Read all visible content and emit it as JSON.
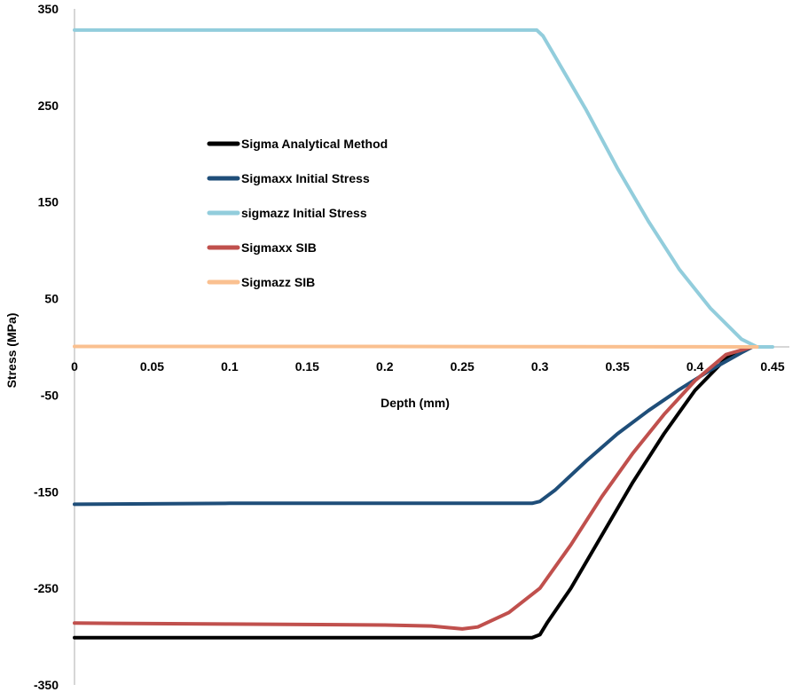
{
  "chart_data": {
    "type": "line",
    "title": "",
    "xlabel": "Depth (mm)",
    "ylabel": "Stress (MPa)",
    "xlim": [
      0,
      0.45
    ],
    "ylim": [
      -350,
      350
    ],
    "xticks": [
      0,
      0.05,
      0.1,
      0.15,
      0.2,
      0.25,
      0.3,
      0.35,
      0.4,
      0.45
    ],
    "xtick_labels": [
      "0",
      "0.05",
      "0.1",
      "0.15",
      "0.2",
      "0.25",
      "0.3",
      "0.35",
      "0.4",
      "0.45"
    ],
    "yticks": [
      350,
      250,
      150,
      50,
      -50,
      -150,
      -250,
      -350
    ],
    "ytick_labels": [
      "350",
      "250",
      "150",
      "50",
      "-50",
      "-150",
      "-250",
      "-350"
    ],
    "grid": false,
    "legend_position": "center-left",
    "series": [
      {
        "name": "Sigma Analytical Method",
        "color": "#000000",
        "x": [
          0,
          0.1,
          0.2,
          0.29,
          0.295,
          0.3,
          0.305,
          0.32,
          0.34,
          0.36,
          0.38,
          0.4,
          0.42,
          0.435
        ],
        "y": [
          -301,
          -301,
          -301,
          -301,
          -301,
          -298,
          -285,
          -250,
          -195,
          -140,
          -90,
          -45,
          -12,
          0
        ]
      },
      {
        "name": "Sigmaxx Initial Stress",
        "color": "#1f4e79",
        "x": [
          0,
          0.1,
          0.2,
          0.29,
          0.295,
          0.3,
          0.31,
          0.33,
          0.35,
          0.37,
          0.39,
          0.41,
          0.43,
          0.437
        ],
        "y": [
          -163,
          -162,
          -162,
          -162,
          -162,
          -160,
          -148,
          -118,
          -90,
          -66,
          -44,
          -24,
          -6,
          0
        ]
      },
      {
        "name": "sigmazz Initial Stress",
        "color": "#92cddc",
        "x": [
          0,
          0.1,
          0.2,
          0.29,
          0.298,
          0.302,
          0.31,
          0.33,
          0.35,
          0.37,
          0.39,
          0.41,
          0.43,
          0.44,
          0.45
        ],
        "y": [
          328,
          328,
          328,
          328,
          328,
          322,
          300,
          245,
          185,
          130,
          80,
          40,
          8,
          0,
          0
        ]
      },
      {
        "name": "Sigmaxx SIB",
        "color": "#c0504d",
        "x": [
          0,
          0.1,
          0.2,
          0.23,
          0.25,
          0.26,
          0.28,
          0.3,
          0.32,
          0.34,
          0.36,
          0.38,
          0.4,
          0.42,
          0.437
        ],
        "y": [
          -286,
          -287,
          -288,
          -289,
          -292,
          -290,
          -275,
          -250,
          -205,
          -155,
          -110,
          -70,
          -35,
          -8,
          0
        ]
      },
      {
        "name": "Sigmazz SIB",
        "color": "#fac090",
        "x": [
          0,
          0.1,
          0.2,
          0.3,
          0.4,
          0.44
        ],
        "y": [
          0.5,
          0.5,
          0.5,
          0.3,
          0.1,
          0
        ]
      }
    ]
  }
}
